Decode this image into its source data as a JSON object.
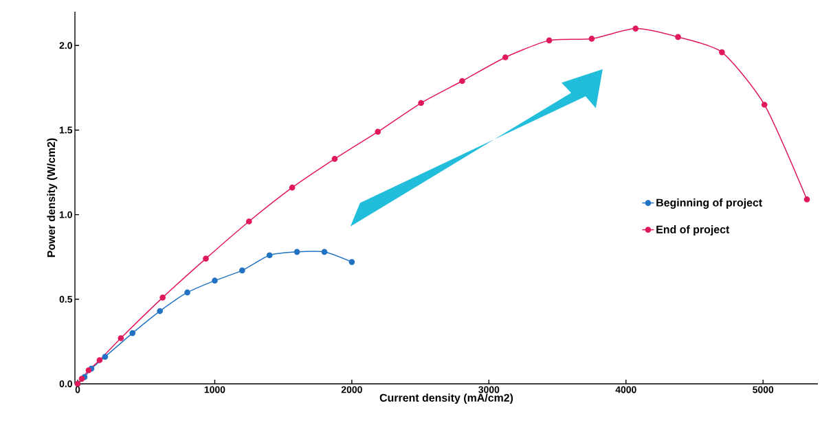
{
  "chart_data": {
    "type": "line",
    "xlabel": "Current density (mA/cm2)",
    "ylabel": "Power density (W/cm2)",
    "series": [
      {
        "name": "Beginning of project",
        "color": "#2272c3",
        "x": [
          0,
          50,
          100,
          200,
          400,
          600,
          800,
          1000,
          1200,
          1400,
          1600,
          1800,
          2000
        ],
        "values": [
          0,
          0.04,
          0.09,
          0.16,
          0.3,
          0.43,
          0.54,
          0.61,
          0.67,
          0.76,
          0.78,
          0.78,
          0.72
        ]
      },
      {
        "name": "End of project",
        "color": "#e0195a",
        "x": [
          0,
          30,
          80,
          160,
          315,
          620,
          935,
          1250,
          1565,
          1875,
          2190,
          2505,
          2805,
          3120,
          3440,
          3750,
          4070,
          4380,
          4700,
          5010,
          5320
        ],
        "values": [
          0,
          0.03,
          0.08,
          0.14,
          0.27,
          0.51,
          0.74,
          0.96,
          1.16,
          1.33,
          1.49,
          1.66,
          1.79,
          1.93,
          2.03,
          2.04,
          2.1,
          2.05,
          1.96,
          1.65,
          1.09
        ]
      }
    ],
    "xlim": [
      -20,
      5400
    ],
    "ylim": [
      0,
      2.2
    ],
    "xticks": [
      0,
      1000,
      2000,
      3000,
      4000,
      5000
    ],
    "yticks": [
      {
        "value": 0,
        "label": "0.0"
      },
      {
        "value": 0.5,
        "label": "0.5"
      },
      {
        "value": 1,
        "label": "1.0"
      },
      {
        "value": 1.5,
        "label": "1.5"
      },
      {
        "value": 2,
        "label": "2.0"
      }
    ],
    "grid": false,
    "legend": "right",
    "marker": "circle",
    "line_style": "solid"
  }
}
